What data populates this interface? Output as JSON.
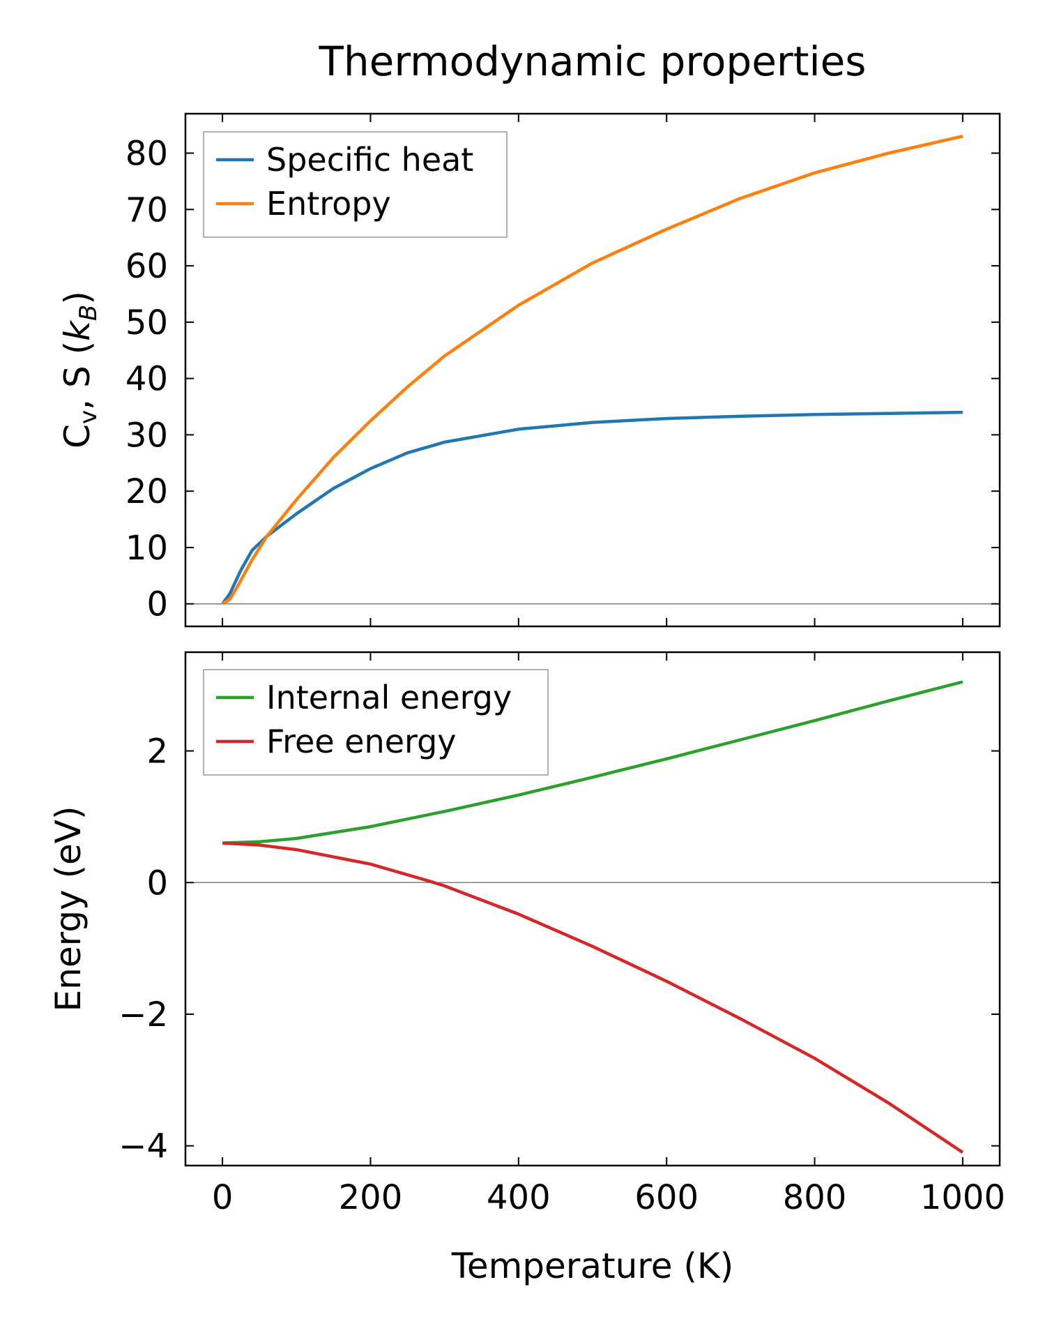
{
  "chart_data": [
    {
      "type": "line",
      "title": "Thermodynamic properties",
      "xlabel": "",
      "ylabel_parts": [
        {
          "t": "C"
        },
        {
          "t": "v",
          "sub": true
        },
        {
          "t": ", S ("
        },
        {
          "t": "k",
          "it": true
        },
        {
          "t": "B",
          "sub": true,
          "it": true
        },
        {
          "t": ")"
        }
      ],
      "xlim": [
        -50,
        1050
      ],
      "ylim": [
        -4,
        87
      ],
      "xticks": [
        0,
        200,
        400,
        600,
        800,
        1000
      ],
      "yticks": [
        0,
        10,
        20,
        30,
        40,
        50,
        60,
        70,
        80
      ],
      "zero_line": true,
      "legend": "top-left",
      "series": [
        {
          "name": "Specific heat",
          "color": "#1f77b4",
          "x": [
            0,
            10,
            25,
            40,
            60,
            100,
            150,
            200,
            250,
            300,
            400,
            500,
            600,
            700,
            800,
            900,
            1000
          ],
          "y": [
            0,
            1.8,
            6,
            9.5,
            12,
            16,
            20.5,
            24,
            26.8,
            28.7,
            31,
            32.2,
            32.9,
            33.3,
            33.6,
            33.8,
            34
          ]
        },
        {
          "name": "Entropy",
          "color": "#ff7f0e",
          "x": [
            0,
            10,
            20,
            40,
            60,
            100,
            150,
            200,
            250,
            300,
            400,
            500,
            600,
            700,
            800,
            900,
            1000
          ],
          "y": [
            0,
            0.8,
            3,
            7.8,
            12,
            18.5,
            26,
            32.5,
            38.5,
            44,
            53,
            60.5,
            66.5,
            72,
            76.5,
            80,
            83
          ]
        }
      ]
    },
    {
      "type": "line",
      "xlabel": "Temperature (K)",
      "ylabel": "Energy (eV)",
      "xlim": [
        -50,
        1050
      ],
      "ylim": [
        -4.3,
        3.5
      ],
      "xticks": [
        0,
        200,
        400,
        600,
        800,
        1000
      ],
      "xticklabels": [
        "0",
        "200",
        "400",
        "600",
        "800",
        "1000"
      ],
      "yticks": [
        -4,
        -2,
        0,
        2
      ],
      "yticklabels": [
        "−4",
        "−2",
        "0",
        "2"
      ],
      "zero_line": true,
      "legend": "top-left",
      "series": [
        {
          "name": "Internal energy",
          "color": "#2ca02c",
          "x": [
            0,
            50,
            100,
            200,
            300,
            400,
            500,
            600,
            700,
            800,
            900,
            1000
          ],
          "y": [
            0.6,
            0.62,
            0.67,
            0.85,
            1.08,
            1.33,
            1.6,
            1.88,
            2.17,
            2.46,
            2.76,
            3.05
          ]
        },
        {
          "name": "Free energy",
          "color": "#d62728",
          "x": [
            0,
            50,
            100,
            200,
            280,
            300,
            400,
            500,
            600,
            700,
            800,
            900,
            1000
          ],
          "y": [
            0.6,
            0.57,
            0.5,
            0.28,
            0.02,
            -0.05,
            -0.48,
            -0.97,
            -1.5,
            -2.07,
            -2.67,
            -3.35,
            -4.1
          ]
        }
      ]
    }
  ]
}
